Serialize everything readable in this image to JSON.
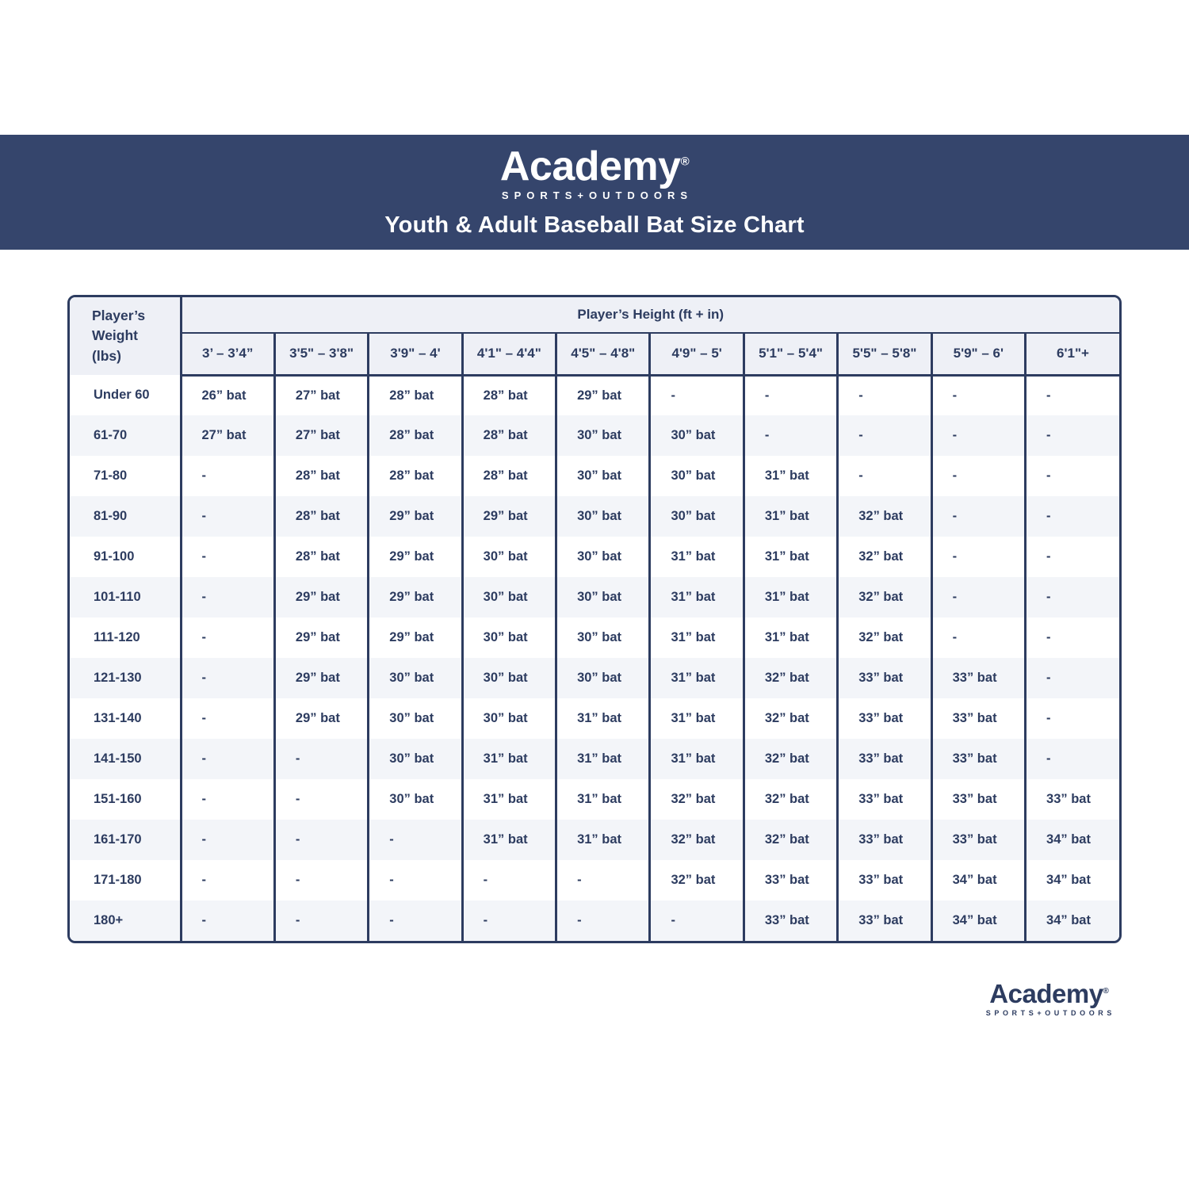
{
  "banner": {
    "logo": {
      "text": "Academy",
      "reg": "®",
      "subtext": "SPORTS+OUTDOORS"
    },
    "title": "Youth & Adult Baseball Bat Size Chart"
  },
  "footer_logo": {
    "text": "Academy",
    "reg": "®",
    "subtext": "SPORTS+OUTDOORS"
  },
  "colors": {
    "banner_navy": "#35456c",
    "table_border_navy": "#2d3c60",
    "text_navy": "#2d3c60",
    "header_cell_bg": "#eef0f6",
    "stripe_row_bg": "#f3f5f9"
  },
  "chart_data": {
    "type": "table",
    "title": "Youth & Adult Baseball Bat Size Chart",
    "corner_header": "Player’s Weight (lbs)",
    "col_group_header": "Player’s Height (ft + in)",
    "height_columns": [
      "3’ – 3’4”",
      "3'5\" – 3'8\"",
      "3'9\" – 4'",
      "4'1\" – 4'4\"",
      "4'5\" – 4'8\"",
      "4'9\" – 5'",
      "5'1\" – 5'4\"",
      "5'5\" – 5'8\"",
      "5'9\" – 6'",
      "6'1\"+"
    ],
    "rows": [
      {
        "weight": "Under 60",
        "values": [
          "26” bat",
          "27” bat",
          "28” bat",
          "28” bat",
          "29” bat",
          "-",
          "-",
          "-",
          "-",
          "-"
        ]
      },
      {
        "weight": "61-70",
        "values": [
          "27” bat",
          "27” bat",
          "28” bat",
          "28” bat",
          "30” bat",
          "30” bat",
          "-",
          "-",
          "-",
          "-"
        ]
      },
      {
        "weight": "71-80",
        "values": [
          "-",
          "28” bat",
          "28” bat",
          "28” bat",
          "30” bat",
          "30” bat",
          "31” bat",
          "-",
          "-",
          "-"
        ]
      },
      {
        "weight": "81-90",
        "values": [
          "-",
          "28” bat",
          "29” bat",
          "29” bat",
          "30” bat",
          "30” bat",
          "31” bat",
          "32” bat",
          "-",
          "-"
        ]
      },
      {
        "weight": "91-100",
        "values": [
          "-",
          "28” bat",
          "29” bat",
          "30” bat",
          "30” bat",
          "31” bat",
          "31” bat",
          "32” bat",
          "-",
          "-"
        ]
      },
      {
        "weight": "101-110",
        "values": [
          "-",
          "29” bat",
          "29” bat",
          "30” bat",
          "30” bat",
          "31” bat",
          "31” bat",
          "32” bat",
          "-",
          "-"
        ]
      },
      {
        "weight": "111-120",
        "values": [
          "-",
          "29” bat",
          "29” bat",
          "30” bat",
          "30” bat",
          "31” bat",
          "31” bat",
          "32” bat",
          "-",
          "-"
        ]
      },
      {
        "weight": "121-130",
        "values": [
          "-",
          "29” bat",
          "30” bat",
          "30” bat",
          "30” bat",
          "31” bat",
          "32” bat",
          "33” bat",
          "33” bat",
          "-"
        ]
      },
      {
        "weight": "131-140",
        "values": [
          "-",
          "29” bat",
          "30” bat",
          "30” bat",
          "31” bat",
          "31” bat",
          "32” bat",
          "33” bat",
          "33” bat",
          "-"
        ]
      },
      {
        "weight": "141-150",
        "values": [
          "-",
          "-",
          "30” bat",
          "31” bat",
          "31” bat",
          "31” bat",
          "32” bat",
          "33” bat",
          "33” bat",
          "-"
        ]
      },
      {
        "weight": "151-160",
        "values": [
          "-",
          "-",
          "30” bat",
          "31” bat",
          "31” bat",
          "32” bat",
          "32” bat",
          "33” bat",
          "33” bat",
          "33” bat"
        ]
      },
      {
        "weight": "161-170",
        "values": [
          "-",
          "-",
          "-",
          "31” bat",
          "31” bat",
          "32” bat",
          "32” bat",
          "33” bat",
          "33” bat",
          "34” bat"
        ]
      },
      {
        "weight": "171-180",
        "values": [
          "-",
          "-",
          "-",
          "-",
          "-",
          "32” bat",
          "33” bat",
          "33” bat",
          "34” bat",
          "34” bat"
        ]
      },
      {
        "weight": "180+",
        "values": [
          "-",
          "-",
          "-",
          "-",
          "-",
          "-",
          "33” bat",
          "33” bat",
          "34” bat",
          "34” bat"
        ]
      }
    ]
  }
}
